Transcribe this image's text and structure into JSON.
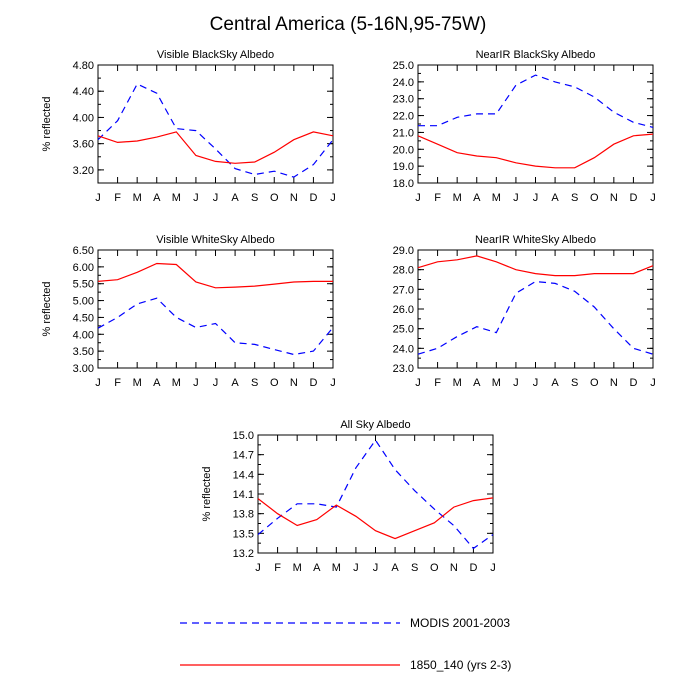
{
  "figure_title": "Central America (5-16N,95-75W)",
  "series_colors": {
    "modis": "#0000ff",
    "model": "#ff0000"
  },
  "legend": [
    {
      "key": "modis",
      "label": "MODIS 2001-2003",
      "dash": "dashed"
    },
    {
      "key": "model",
      "label": "1850_140 (yrs 2-3)",
      "dash": "solid"
    }
  ],
  "chart_data": [
    {
      "type": "line",
      "title": "Visible BlackSky Albedo",
      "ylabel": "% reflected",
      "categories": [
        "J",
        "F",
        "M",
        "A",
        "M",
        "J",
        "J",
        "A",
        "S",
        "O",
        "N",
        "D",
        "J"
      ],
      "ylim": [
        3.0,
        4.8
      ],
      "yticks": [
        3.2,
        3.6,
        4.0,
        4.4,
        4.8
      ],
      "ytick_labels": [
        "3.20",
        "3.60",
        "4.00",
        "4.40",
        "4.80"
      ],
      "series": [
        {
          "key": "modis",
          "name": "MODIS 2001-2003",
          "values": [
            3.66,
            3.95,
            4.51,
            4.37,
            3.83,
            3.8,
            3.52,
            3.22,
            3.13,
            3.18,
            3.09,
            3.28,
            3.66
          ]
        },
        {
          "key": "model",
          "name": "1850_140 (yrs 2-3)",
          "values": [
            3.72,
            3.62,
            3.64,
            3.7,
            3.78,
            3.42,
            3.33,
            3.3,
            3.32,
            3.47,
            3.66,
            3.78,
            3.72
          ]
        }
      ]
    },
    {
      "type": "line",
      "title": "NearIR BlackSky Albedo",
      "ylabel": "",
      "categories": [
        "J",
        "F",
        "M",
        "A",
        "M",
        "J",
        "J",
        "A",
        "S",
        "O",
        "N",
        "D",
        "J"
      ],
      "ylim": [
        18.0,
        25.0
      ],
      "yticks": [
        18,
        19,
        20,
        21,
        22,
        23,
        24,
        25
      ],
      "ytick_labels": [
        "18.0",
        "19.0",
        "20.0",
        "21.0",
        "22.0",
        "23.0",
        "24.0",
        "25.0"
      ],
      "series": [
        {
          "key": "modis",
          "name": "MODIS 2001-2003",
          "values": [
            21.4,
            21.4,
            21.9,
            22.1,
            22.1,
            23.8,
            24.4,
            24.0,
            23.7,
            23.1,
            22.2,
            21.6,
            21.3
          ]
        },
        {
          "key": "model",
          "name": "1850_140 (yrs 2-3)",
          "values": [
            20.8,
            20.3,
            19.8,
            19.6,
            19.5,
            19.2,
            19.0,
            18.9,
            18.9,
            19.5,
            20.3,
            20.8,
            20.9
          ]
        }
      ]
    },
    {
      "type": "line",
      "title": "Visible WhiteSky Albedo",
      "ylabel": "% reflected",
      "categories": [
        "J",
        "F",
        "M",
        "A",
        "M",
        "J",
        "J",
        "A",
        "S",
        "O",
        "N",
        "D",
        "J"
      ],
      "ylim": [
        3.0,
        6.5
      ],
      "yticks": [
        3.0,
        3.5,
        4.0,
        4.5,
        5.0,
        5.5,
        6.0,
        6.5
      ],
      "ytick_labels": [
        "3.00",
        "3.50",
        "4.00",
        "4.50",
        "5.00",
        "5.50",
        "6.00",
        "6.50"
      ],
      "series": [
        {
          "key": "modis",
          "name": "MODIS 2001-2003",
          "values": [
            4.18,
            4.5,
            4.9,
            5.07,
            4.5,
            4.2,
            4.32,
            3.75,
            3.7,
            3.55,
            3.4,
            3.5,
            4.2
          ]
        },
        {
          "key": "model",
          "name": "1850_140 (yrs 2-3)",
          "values": [
            5.57,
            5.62,
            5.84,
            6.1,
            6.07,
            5.55,
            5.38,
            5.4,
            5.43,
            5.49,
            5.55,
            5.57,
            5.57
          ]
        }
      ]
    },
    {
      "type": "line",
      "title": "NearIR WhiteSky Albedo",
      "ylabel": "",
      "categories": [
        "J",
        "F",
        "M",
        "A",
        "M",
        "J",
        "J",
        "A",
        "S",
        "O",
        "N",
        "D",
        "J"
      ],
      "ylim": [
        23.0,
        29.0
      ],
      "yticks": [
        23,
        24,
        25,
        26,
        27,
        28,
        29
      ],
      "ytick_labels": [
        "23.0",
        "24.0",
        "25.0",
        "26.0",
        "27.0",
        "28.0",
        "29.0"
      ],
      "series": [
        {
          "key": "modis",
          "name": "MODIS 2001-2003",
          "values": [
            23.7,
            24.0,
            24.6,
            25.1,
            24.8,
            26.8,
            27.4,
            27.3,
            26.9,
            26.1,
            25.0,
            24.0,
            23.7
          ]
        },
        {
          "key": "model",
          "name": "1850_140 (yrs 2-3)",
          "values": [
            28.1,
            28.4,
            28.5,
            28.7,
            28.4,
            28.0,
            27.8,
            27.7,
            27.7,
            27.8,
            27.8,
            27.8,
            28.2
          ]
        }
      ]
    },
    {
      "type": "line",
      "title": "All Sky Albedo",
      "ylabel": "% reflected",
      "categories": [
        "J",
        "F",
        "M",
        "A",
        "M",
        "J",
        "J",
        "A",
        "S",
        "O",
        "N",
        "D",
        "J"
      ],
      "ylim": [
        13.2,
        15.0
      ],
      "yticks": [
        13.2,
        13.5,
        13.8,
        14.1,
        14.4,
        14.7,
        15.0
      ],
      "ytick_labels": [
        "13.2",
        "13.5",
        "13.8",
        "14.1",
        "14.4",
        "14.7",
        "15.0"
      ],
      "series": [
        {
          "key": "modis",
          "name": "MODIS 2001-2003",
          "values": [
            13.48,
            13.73,
            13.95,
            13.95,
            13.9,
            14.5,
            14.92,
            14.47,
            14.15,
            13.87,
            13.62,
            13.27,
            13.48
          ]
        },
        {
          "key": "model",
          "name": "1850_140 (yrs 2-3)",
          "values": [
            14.03,
            13.8,
            13.62,
            13.71,
            13.93,
            13.76,
            13.54,
            13.42,
            13.54,
            13.66,
            13.9,
            14.0,
            14.04
          ]
        }
      ]
    }
  ]
}
